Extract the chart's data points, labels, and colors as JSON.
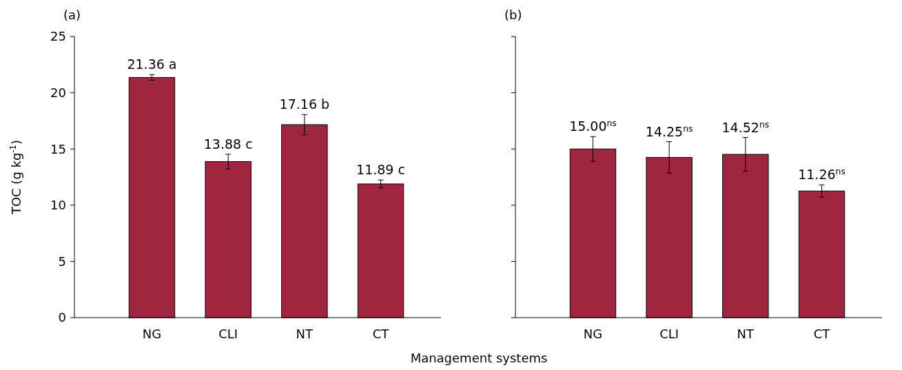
{
  "chart_data": [
    {
      "type": "bar",
      "title": "(a)",
      "xlabel": "Management systems",
      "ylabel": "TOC (g kg$^{-1}$)",
      "categories": [
        "NG",
        "CLI",
        "NT",
        "CT"
      ],
      "values": [
        21.36,
        13.88,
        17.16,
        11.89
      ],
      "errors": [
        0.25,
        0.65,
        0.9,
        0.35
      ],
      "value_labels": [
        "21.36 a",
        "13.88 c",
        "17.16 b",
        "11.89 c"
      ],
      "color": "#a0263f",
      "ylim": [
        0,
        25
      ],
      "yticks": [
        0,
        5,
        10,
        15,
        20,
        25
      ]
    },
    {
      "type": "bar",
      "title": "(b)",
      "categories": [
        "NG",
        "CLI",
        "NT",
        "CT"
      ],
      "values": [
        15.0,
        14.25,
        14.52,
        11.26
      ],
      "errors": [
        1.1,
        1.4,
        1.5,
        0.55
      ],
      "value_labels": [
        "15.00$^{ns}$",
        "14.25$^{ns}$",
        "14.52$^{ns}$",
        "11.26$^{ns}$"
      ],
      "color": "#a0263f",
      "ylim": [
        0,
        25
      ],
      "yticks": [
        0,
        5,
        10,
        15,
        20,
        25
      ],
      "tick_labels": "x"
    }
  ]
}
